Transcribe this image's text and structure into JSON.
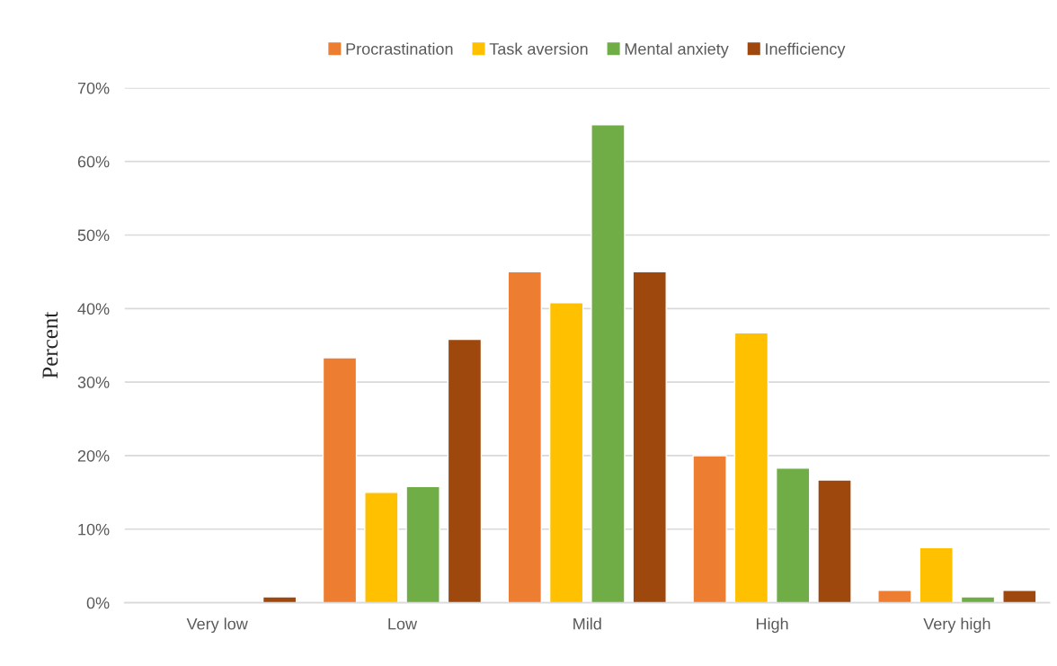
{
  "chart_data": {
    "type": "bar",
    "ylabel": "Percent",
    "categories": [
      "Very low",
      "Low",
      "Mild",
      "High",
      "Very high"
    ],
    "series": [
      {
        "name": "Procrastination",
        "color": "#ed7d31",
        "values": [
          null,
          33.3,
          45.0,
          20.0,
          1.7
        ]
      },
      {
        "name": "Task aversion",
        "color": "#ffc000",
        "values": [
          null,
          15.0,
          40.8,
          36.7,
          7.5
        ]
      },
      {
        "name": "Mental anxiety",
        "color": "#70ad47",
        "values": [
          null,
          15.8,
          65.0,
          18.3,
          0.8
        ]
      },
      {
        "name": "Inefficiency",
        "color": "#9e480e",
        "values": [
          0.8,
          35.8,
          45.0,
          16.7,
          1.7
        ]
      }
    ],
    "ylim": [
      0,
      70
    ],
    "yticks": [
      {
        "value": 0,
        "label": "0%"
      },
      {
        "value": 10,
        "label": "10%"
      },
      {
        "value": 20,
        "label": "20%"
      },
      {
        "value": 30,
        "label": "30%"
      },
      {
        "value": 40,
        "label": "40%"
      },
      {
        "value": 50,
        "label": "50%"
      },
      {
        "value": 60,
        "label": "60%"
      },
      {
        "value": 70,
        "label": "70%"
      }
    ],
    "grid": "y",
    "legend": "top"
  }
}
